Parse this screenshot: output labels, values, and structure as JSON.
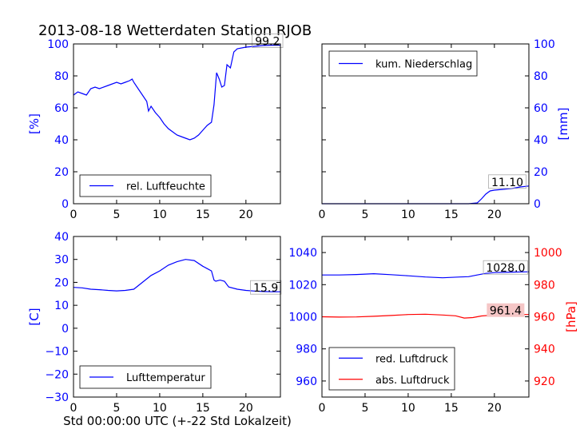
{
  "figure": {
    "title": "2013-08-18 Wetterdaten Station RJOB",
    "xlabel": "Std 00:00:00 UTC (+-22 Std Lokalzeit)"
  },
  "colors": {
    "blue": "#0000ff",
    "red": "#ff0000",
    "axis": "#000000"
  },
  "chart_data": [
    {
      "type": "line",
      "ylabel": "[%]",
      "xlim": [
        0,
        24
      ],
      "ylim": [
        0,
        100
      ],
      "xticks": [
        0,
        5,
        10,
        15,
        20
      ],
      "yticks": [
        0,
        20,
        40,
        60,
        80,
        100
      ],
      "legend": {
        "placement": "lower-left"
      },
      "annotation": {
        "text": "99.2",
        "x": 22.5,
        "y": 99.2
      },
      "series": [
        {
          "name": "rel. Luftfeuchte",
          "color": "#0000ff",
          "x": [
            0,
            0.5,
            1,
            1.5,
            2,
            2.5,
            3,
            4,
            5,
            5.5,
            6,
            6.5,
            6.8,
            7,
            7.5,
            8,
            8.5,
            8.7,
            9,
            9.5,
            10,
            10.5,
            11,
            11.5,
            12,
            12.5,
            13,
            13.5,
            14,
            14.5,
            15,
            15.5,
            16,
            16.3,
            16.6,
            16.9,
            17.2,
            17.5,
            17.8,
            18.2,
            18.6,
            19,
            20,
            21,
            22,
            23,
            24
          ],
          "y": [
            68,
            70,
            69,
            68,
            72,
            73,
            72,
            74,
            76,
            75,
            76,
            77,
            78,
            76,
            72,
            68,
            64,
            58,
            61,
            57,
            54,
            50,
            47,
            45,
            43,
            42,
            41,
            40,
            41,
            43,
            46,
            49,
            51,
            62,
            82,
            78,
            73,
            74,
            87,
            85,
            95,
            97,
            98,
            98.5,
            99,
            99.2,
            99.2
          ]
        }
      ]
    },
    {
      "type": "line",
      "ylabel": "[mm]",
      "xlim": [
        0,
        24
      ],
      "ylim": [
        0,
        100
      ],
      "xticks": [
        0,
        5,
        10,
        15,
        20
      ],
      "yticks": [
        0,
        20,
        40,
        60,
        80,
        100
      ],
      "legend": {
        "placement": "upper-left"
      },
      "annotation": {
        "text": "11.10",
        "x": 21.5,
        "y": 11.1
      },
      "series": [
        {
          "name": "kum. Niederschlag",
          "color": "#0000ff",
          "x": [
            0,
            15,
            17,
            18,
            18.5,
            19,
            19.5,
            20,
            21,
            22,
            23,
            24
          ],
          "y": [
            0,
            0,
            0,
            0.5,
            3,
            6,
            8,
            8.5,
            9,
            9.5,
            10.5,
            11.1
          ]
        }
      ]
    },
    {
      "type": "line",
      "ylabel": "[C]",
      "xlim": [
        0,
        24
      ],
      "ylim": [
        -30,
        40
      ],
      "xticks": [
        0,
        5,
        10,
        15,
        20
      ],
      "yticks": [
        -30,
        -20,
        -10,
        0,
        10,
        20,
        30,
        40
      ],
      "legend": {
        "placement": "lower-left"
      },
      "annotation": {
        "text": "15.9",
        "x": 22.3,
        "y": 15.9
      },
      "series": [
        {
          "name": "Lufttemperatur",
          "color": "#0000ff",
          "x": [
            0,
            1,
            2,
            3,
            4,
            5,
            6,
            7,
            8,
            9,
            10,
            11,
            12,
            13,
            14,
            15,
            15.5,
            16,
            16.3,
            16.5,
            17,
            17.5,
            18,
            19,
            20,
            21,
            22,
            23,
            24
          ],
          "y": [
            17.8,
            17.6,
            17,
            16.8,
            16.5,
            16.3,
            16.5,
            17,
            20,
            23,
            25,
            27.5,
            29,
            30,
            29.5,
            27,
            26,
            25,
            21,
            20.5,
            21,
            20.5,
            18,
            17,
            16.5,
            16.2,
            16,
            15.9,
            15.9
          ]
        }
      ]
    },
    {
      "type": "line",
      "ylim": [
        950,
        1050
      ],
      "y2label": "[hPa]",
      "y2lim": [
        910,
        1010
      ],
      "xlim": [
        0,
        24
      ],
      "xticks": [
        0,
        5,
        10,
        15,
        20
      ],
      "yticks": [
        960,
        980,
        1000,
        1020,
        1040
      ],
      "y2ticks": [
        920,
        940,
        960,
        980,
        1000
      ],
      "legend": {
        "placement": "lower-left"
      },
      "annotations": [
        {
          "text": "1028.0",
          "x": 21.3,
          "y": 1028.0,
          "axis": "left"
        },
        {
          "text": "961.4",
          "x": 21.3,
          "y": 961.4,
          "axis": "right"
        }
      ],
      "series": [
        {
          "name": "red. Luftdruck",
          "color": "#0000ff",
          "axis": "left",
          "x": [
            0,
            2,
            4,
            6,
            8,
            10,
            12,
            14,
            16,
            17,
            18,
            19,
            20,
            22,
            24
          ],
          "y": [
            1026,
            1026,
            1026.3,
            1026.8,
            1026.2,
            1025.5,
            1024.8,
            1024.3,
            1024.8,
            1025,
            1026,
            1027,
            1027.5,
            1027.8,
            1028
          ]
        },
        {
          "name": "abs. Luftdruck",
          "color": "#ff0000",
          "axis": "right",
          "x": [
            0,
            2,
            4,
            6,
            8,
            10,
            12,
            14,
            15.5,
            16.5,
            17.5,
            18.5,
            19.5,
            20.5,
            22,
            24
          ],
          "y": [
            960,
            959.8,
            959.9,
            960.3,
            960.8,
            961.4,
            961.6,
            961.1,
            960.6,
            959.2,
            959.5,
            960.5,
            960.9,
            961.2,
            961.3,
            961.4
          ]
        }
      ]
    }
  ]
}
